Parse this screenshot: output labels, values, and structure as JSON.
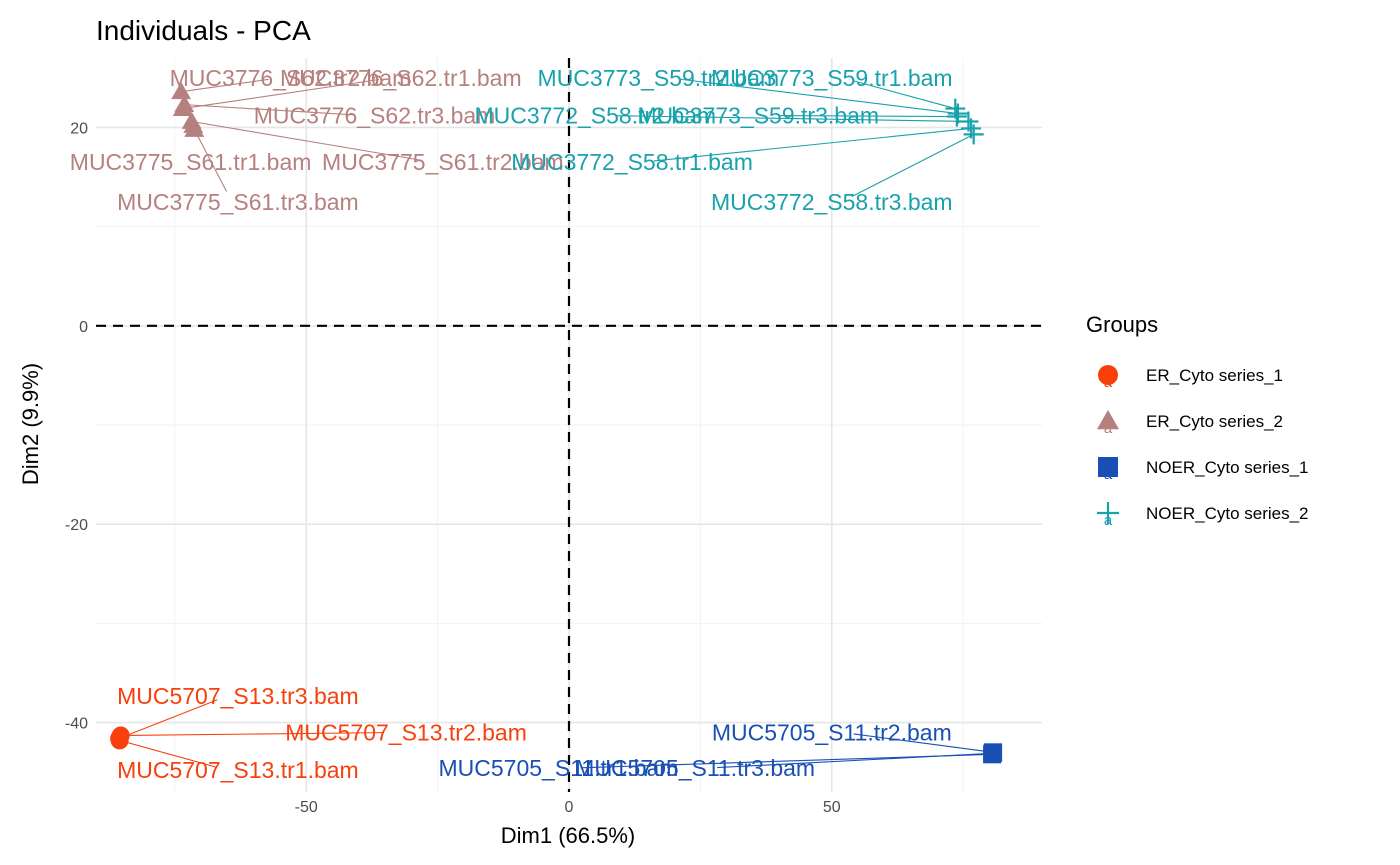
{
  "chart_data": {
    "type": "scatter",
    "title": "Individuals - PCA",
    "xlabel": "Dim1 (66.5%)",
    "ylabel": "Dim2 (9.9%)",
    "xlim": [
      -90,
      90
    ],
    "ylim": [
      -47,
      27
    ],
    "x_ticks": [
      -50,
      0,
      50
    ],
    "y_ticks": [
      -40,
      -20,
      0,
      20
    ],
    "x_tick_labels": [
      "-50",
      "0",
      "50"
    ],
    "y_tick_labels": [
      "-40",
      "-20",
      "0",
      "20"
    ],
    "grid": true,
    "reference_lines": {
      "x": 0,
      "y": 0
    },
    "legend": {
      "title": "Groups",
      "position": "right",
      "items": [
        {
          "name": "ER_Cyto series_1",
          "color": "#F8400C",
          "shape": "circle"
        },
        {
          "name": "ER_Cyto series_2",
          "color": "#B6807E",
          "shape": "triangle"
        },
        {
          "name": "NOER_Cyto series_1",
          "color": "#1A4FB5",
          "shape": "square"
        },
        {
          "name": "NOER_Cyto series_2",
          "color": "#18A2AC",
          "shape": "plus"
        }
      ]
    },
    "series": [
      {
        "name": "ER_Cyto series_1",
        "color": "#F8400C",
        "shape": "circle",
        "points": [
          {
            "label": "MUC5707_S13.tr1.bam",
            "x": -85.5,
            "y": -41.8,
            "label_x": -63,
            "label_y": -44.8
          },
          {
            "label": "MUC5707_S13.tr2.bam",
            "x": -85.3,
            "y": -41.3,
            "label_x": -31,
            "label_y": -41.0
          },
          {
            "label": "MUC5707_S13.tr3.bam",
            "x": -85.6,
            "y": -41.6,
            "label_x": -63,
            "label_y": -37.3
          }
        ]
      },
      {
        "name": "ER_Cyto series_2",
        "color": "#B6807E",
        "shape": "triangle",
        "points": [
          {
            "label": "MUC3775_S61.tr1.bam",
            "x": -71.5,
            "y": 20.2,
            "label_x": -72,
            "label_y": 16.5
          },
          {
            "label": "MUC3775_S61.tr2.bam",
            "x": -71.8,
            "y": 20.6,
            "label_x": -24,
            "label_y": 16.5
          },
          {
            "label": "MUC3775_S61.tr3.bam",
            "x": -71.3,
            "y": 19.8,
            "label_x": -63,
            "label_y": 12.5
          },
          {
            "label": "MUC3776_S62.tr1.bam",
            "x": -73.5,
            "y": 21.9,
            "label_x": -32,
            "label_y": 25.0
          },
          {
            "label": "MUC3776_S62.tr2.bam",
            "x": -73.8,
            "y": 23.6,
            "label_x": -53,
            "label_y": 25.0
          },
          {
            "label": "MUC3776_S62.tr3.bam",
            "x": -73.2,
            "y": 22.3,
            "label_x": -37,
            "label_y": 21.2
          }
        ]
      },
      {
        "name": "NOER_Cyto series_1",
        "color": "#1A4FB5",
        "shape": "square",
        "points": [
          {
            "label": "MUC5705_S11.tr1.bam",
            "x": 80.5,
            "y": -43.2,
            "label_x": -2,
            "label_y": -44.6
          },
          {
            "label": "MUC5705_S11.tr2.bam",
            "x": 80.7,
            "y": -43.0,
            "label_x": 50,
            "label_y": -41.0
          },
          {
            "label": "MUC5705_S11.tr3.bam",
            "x": 80.6,
            "y": -43.1,
            "label_x": 24,
            "label_y": -44.6
          }
        ]
      },
      {
        "name": "NOER_Cyto series_2",
        "color": "#18A2AC",
        "shape": "plus",
        "points": [
          {
            "label": "MUC3772_S58.tr1.bam",
            "x": 76.5,
            "y": 19.9,
            "label_x": 12,
            "label_y": 16.5
          },
          {
            "label": "MUC3772_S58.tr2.bam",
            "x": 76.0,
            "y": 20.6,
            "label_x": 5,
            "label_y": 21.2
          },
          {
            "label": "MUC3772_S58.tr3.bam",
            "x": 77.0,
            "y": 19.3,
            "label_x": 50,
            "label_y": 12.5
          },
          {
            "label": "MUC3773_S59.tr1.bam",
            "x": 73.5,
            "y": 21.9,
            "label_x": 50,
            "label_y": 25.0
          },
          {
            "label": "MUC3773_S59.tr2.bam",
            "x": 74.0,
            "y": 21.4,
            "label_x": 17,
            "label_y": 25.0
          },
          {
            "label": "MUC3773_S59.tr3.bam",
            "x": 73.8,
            "y": 21.1,
            "label_x": 36,
            "label_y": 21.2
          }
        ]
      }
    ]
  }
}
